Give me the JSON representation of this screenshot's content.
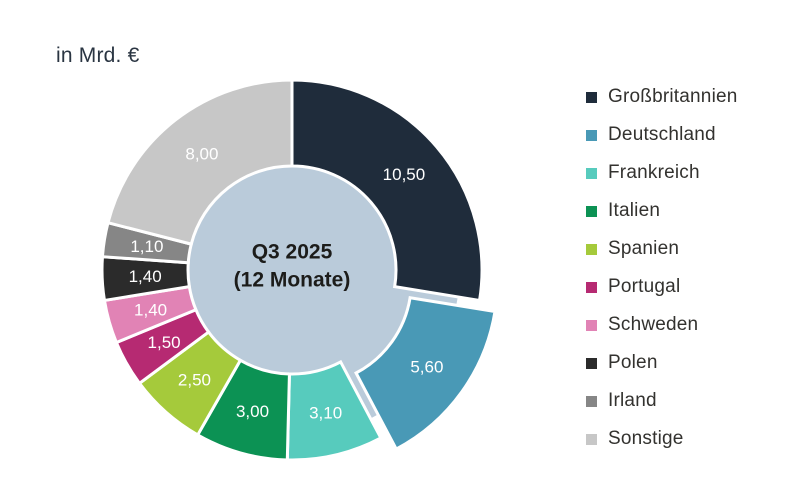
{
  "page": {
    "title": "in Mrd. €"
  },
  "chart_data": {
    "type": "pie",
    "subtype": "donut",
    "title": "in Mrd. €",
    "unit": "Mrd. €",
    "center_label": {
      "line1": "Q3 2025",
      "line2": "(12 Monate)"
    },
    "total": 38.1,
    "start_angle_deg": 0,
    "direction": "clockwise",
    "legend_position": "right",
    "center_fill": "#bacbda",
    "separator_color": "#ffffff",
    "value_label_color": "#ffffff",
    "segments": [
      {
        "label": "Großbritannien",
        "value": 10.5,
        "display": "10,50",
        "color": "#1f2c3b",
        "exploded": false
      },
      {
        "label": "Deutschland",
        "value": 5.6,
        "display": "5,60",
        "color": "#4999b6",
        "exploded": true
      },
      {
        "label": "Frankreich",
        "value": 3.1,
        "display": "3,10",
        "color": "#57cbbd",
        "exploded": false
      },
      {
        "label": "Italien",
        "value": 3.0,
        "display": "3,00",
        "color": "#0c9254",
        "exploded": false
      },
      {
        "label": "Spanien",
        "value": 2.5,
        "display": "2,50",
        "color": "#a5ca3b",
        "exploded": false
      },
      {
        "label": "Portugal",
        "value": 1.5,
        "display": "1,50",
        "color": "#b62a72",
        "exploded": false
      },
      {
        "label": "Schweden",
        "value": 1.4,
        "display": "1,40",
        "color": "#e183b5",
        "exploded": false
      },
      {
        "label": "Polen",
        "value": 1.4,
        "display": "1,40",
        "color": "#2b2b2b",
        "exploded": false
      },
      {
        "label": "Irland",
        "value": 1.1,
        "display": "1,10",
        "color": "#868686",
        "exploded": false
      },
      {
        "label": "Sonstige",
        "value": 8.0,
        "display": "8,00",
        "color": "#c7c7c7",
        "exploded": false
      }
    ]
  }
}
